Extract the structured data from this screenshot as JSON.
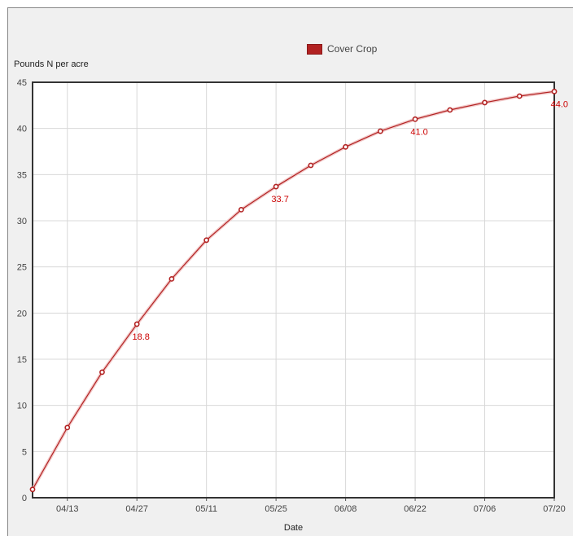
{
  "chart_data": {
    "type": "line",
    "title": "",
    "xlabel": "Date",
    "ylabel": "Pounds N per acre",
    "legend": {
      "entries": [
        "Cover Crop"
      ],
      "position": "top-center"
    },
    "ylim": [
      0,
      45
    ],
    "yticks": [
      0,
      5,
      10,
      15,
      20,
      25,
      30,
      35,
      40,
      45
    ],
    "xticks": [
      "04/13",
      "04/27",
      "05/11",
      "05/25",
      "06/08",
      "06/22",
      "07/06",
      "07/20"
    ],
    "x": [
      "03/30",
      "04/13",
      "04/20",
      "04/27",
      "05/04",
      "05/11",
      "05/18",
      "05/25",
      "06/01",
      "06/08",
      "06/15",
      "06/22",
      "06/29",
      "07/06",
      "07/13",
      "07/20"
    ],
    "series": [
      {
        "name": "Cover Crop",
        "color": "#b22222",
        "values": [
          0.9,
          7.6,
          13.6,
          18.8,
          23.7,
          27.9,
          31.2,
          33.7,
          36.0,
          38.0,
          39.7,
          41.0,
          42.0,
          42.8,
          43.5,
          44.0
        ],
        "labels": [
          {
            "x": "04/27",
            "text": "18.8"
          },
          {
            "x": "05/25",
            "text": "33.7"
          },
          {
            "x": "06/22",
            "text": "41.0"
          },
          {
            "x": "07/20",
            "text": "44.0"
          }
        ]
      }
    ],
    "grid": true
  }
}
